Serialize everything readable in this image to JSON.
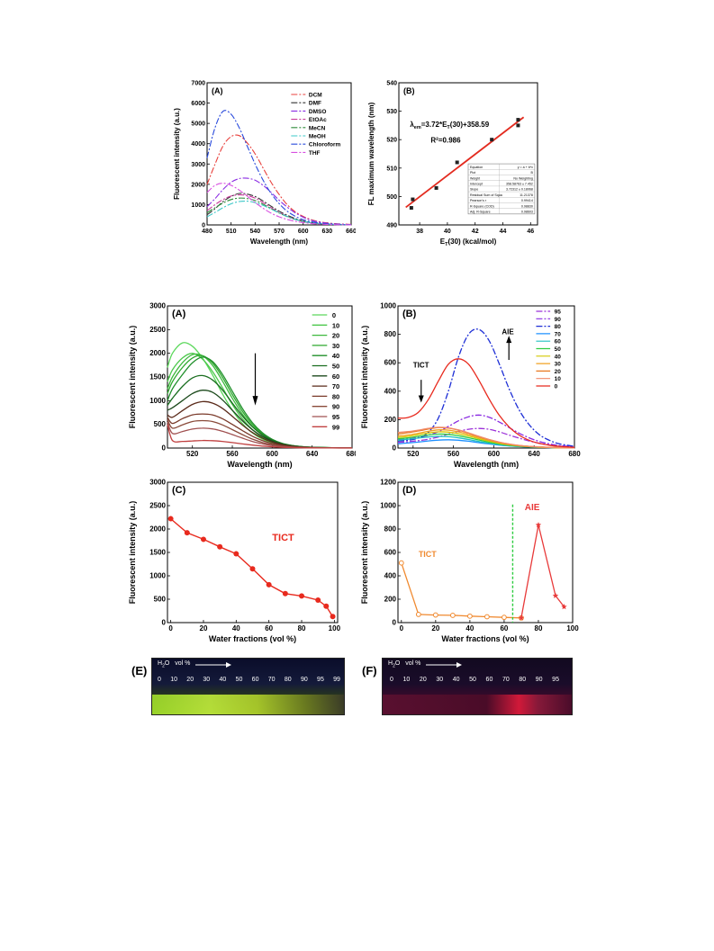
{
  "chart_data": [
    {
      "id": "top-a",
      "type": "line",
      "panel_label": "(A)",
      "xlabel": "Wavelength (nm)",
      "ylabel": "Fluorescent intensity (a.u.)",
      "xlim": [
        480,
        660
      ],
      "ylim": [
        0,
        7000
      ],
      "xticks": [
        480,
        510,
        540,
        570,
        600,
        630,
        660
      ],
      "yticks": [
        0,
        1000,
        2000,
        3000,
        4000,
        5000,
        6000,
        7000
      ],
      "x": [
        480,
        490,
        500,
        510,
        520,
        530,
        540,
        550,
        560,
        570,
        580,
        590,
        600,
        610,
        620,
        630,
        640,
        650,
        660
      ],
      "series": [
        {
          "name": "DCM",
          "color": "#e8403c",
          "dash": "7,2,2,2",
          "values": [
            2000,
            3000,
            3900,
            4350,
            4400,
            4050,
            3500,
            2800,
            2100,
            1500,
            1000,
            650,
            420,
            260,
            160,
            100,
            60,
            40,
            25
          ]
        },
        {
          "name": "DMF",
          "color": "#333333",
          "dash": "7,2,2,2",
          "values": [
            500,
            800,
            1150,
            1400,
            1550,
            1520,
            1400,
            1180,
            920,
            680,
            480,
            320,
            200,
            120,
            75,
            45,
            28,
            18,
            10
          ]
        },
        {
          "name": "DMSO",
          "color": "#8a2be2",
          "dash": "7,2,2,2",
          "values": [
            900,
            1300,
            1750,
            2100,
            2280,
            2300,
            2200,
            1950,
            1600,
            1220,
            880,
            600,
            380,
            230,
            140,
            85,
            50,
            30,
            18
          ]
        },
        {
          "name": "EtOAc",
          "color": "#c8399a",
          "dash": "7,2,2,2",
          "values": [
            700,
            1000,
            1250,
            1420,
            1480,
            1450,
            1320,
            1100,
            850,
            620,
            430,
            280,
            170,
            100,
            60,
            35,
            20,
            12,
            8
          ]
        },
        {
          "name": "MeCN",
          "color": "#2e8b3a",
          "dash": "7,2,2,2",
          "values": [
            600,
            850,
            1080,
            1250,
            1320,
            1300,
            1200,
            1020,
            800,
            590,
            410,
            270,
            170,
            100,
            60,
            35,
            20,
            12,
            8
          ]
        },
        {
          "name": "MeOH",
          "color": "#3cc8c8",
          "dash": "7,2,2,2",
          "values": [
            400,
            620,
            850,
            1040,
            1150,
            1170,
            1100,
            960,
            780,
            590,
            420,
            280,
            180,
            110,
            65,
            40,
            24,
            14,
            8
          ]
        },
        {
          "name": "Chloroform",
          "color": "#2a4bdc",
          "dash": "7,2,2,2",
          "values": [
            3300,
            4800,
            5600,
            5450,
            4800,
            3900,
            3000,
            2200,
            1550,
            1050,
            680,
            430,
            260,
            160,
            95,
            55,
            32,
            20,
            12
          ]
        },
        {
          "name": "THF",
          "color": "#d84fe0",
          "dash": "7,2,2,2",
          "values": [
            1600,
            1950,
            2050,
            1950,
            1720,
            1420,
            1100,
            820,
            580,
            400,
            270,
            180,
            115,
            70,
            42,
            25,
            15,
            9,
            5
          ]
        }
      ]
    },
    {
      "id": "top-b",
      "type": "scatter",
      "panel_label": "(B)",
      "xlabel": "E",
      "xlabel_sub": "T",
      "xlabel_tail": "(30) (kcal/mol)",
      "ylabel": "FL maximum wavelength (nm)",
      "xlim": [
        36.5,
        46.5
      ],
      "ylim": [
        490,
        540
      ],
      "xticks": [
        38,
        40,
        42,
        44,
        46
      ],
      "yticks": [
        490,
        500,
        510,
        520,
        530,
        540
      ],
      "x": [
        37.4,
        37.5,
        39.2,
        40.7,
        43.2,
        45.1,
        45.1
      ],
      "values": [
        496,
        499,
        503,
        512,
        520,
        525,
        527
      ],
      "fit": {
        "color": "#e32b1f",
        "x": [
          37.0,
          45.5
        ],
        "y": [
          496.2,
          527.9
        ]
      },
      "equation_parts": [
        "λ",
        "em",
        "=3.72*E",
        "T",
        "(30)+358.59"
      ],
      "r2": "R²=0.986",
      "fit_table": [
        [
          "Equation",
          "y = a + b*x"
        ],
        [
          "Plot",
          "B"
        ],
        [
          "Weight",
          "No Weighting"
        ],
        [
          "Intercept",
          "358.58763 ± 7.452"
        ],
        [
          "Slope",
          "3.72312 ± 0.18068"
        ],
        [
          "Residual Sum of Squa",
          "11.21378"
        ],
        [
          "Pearson's r",
          "0.99414"
        ],
        [
          "R-Square (COD)",
          "0.98830"
        ],
        [
          "Adj. R-Square",
          "0.98603"
        ]
      ]
    },
    {
      "id": "mid-a",
      "type": "line",
      "panel_label": "(A)",
      "xlabel": "Wavelength (nm)",
      "ylabel": "Fluorescent intensity (a.u.)",
      "xlim": [
        495,
        680
      ],
      "ylim": [
        0,
        3000
      ],
      "xticks": [
        520,
        560,
        600,
        640,
        680
      ],
      "yticks": [
        0,
        500,
        1000,
        1500,
        2000,
        2500,
        3000
      ],
      "x": [
        495,
        500,
        510,
        520,
        530,
        540,
        550,
        560,
        570,
        580,
        590,
        600,
        610,
        620,
        630,
        640,
        660,
        680
      ],
      "series": [
        {
          "name": "0",
          "color": "#5cd85c",
          "values": [
            1700,
            2000,
            2220,
            2150,
            1900,
            1550,
            1150,
            800,
            520,
            320,
            190,
            110,
            60,
            35,
            20,
            12,
            5,
            2
          ]
        },
        {
          "name": "10",
          "color": "#4cc84c",
          "values": [
            1400,
            1650,
            1900,
            2000,
            1880,
            1620,
            1280,
            920,
            620,
            390,
            230,
            130,
            75,
            42,
            24,
            14,
            5,
            2
          ]
        },
        {
          "name": "20",
          "color": "#3db83d",
          "values": [
            1250,
            1500,
            1800,
            1970,
            1950,
            1750,
            1420,
            1050,
            720,
            460,
            280,
            160,
            90,
            50,
            28,
            16,
            6,
            2
          ]
        },
        {
          "name": "30",
          "color": "#2ea82e",
          "values": [
            1150,
            1400,
            1700,
            1900,
            1950,
            1800,
            1500,
            1130,
            780,
            500,
            300,
            170,
            95,
            52,
            29,
            16,
            6,
            2
          ]
        },
        {
          "name": "40",
          "color": "#1f8f2a",
          "values": [
            1000,
            1250,
            1550,
            1800,
            1920,
            1830,
            1560,
            1200,
            840,
            540,
            325,
            185,
            100,
            55,
            30,
            17,
            6,
            2
          ]
        },
        {
          "name": "50",
          "color": "#1a6e20",
          "values": [
            900,
            1050,
            1300,
            1480,
            1530,
            1440,
            1230,
            950,
            680,
            450,
            280,
            165,
            92,
            50,
            27,
            15,
            5,
            2
          ]
        },
        {
          "name": "60",
          "color": "#1c4a1c",
          "values": [
            800,
            850,
            1000,
            1150,
            1220,
            1180,
            1020,
            800,
            580,
            390,
            245,
            145,
            82,
            45,
            24,
            13,
            5,
            2
          ]
        },
        {
          "name": "70",
          "color": "#5a2a1a",
          "values": [
            700,
            650,
            790,
            920,
            980,
            950,
            840,
            670,
            490,
            330,
            210,
            125,
            70,
            38,
            20,
            11,
            4,
            1
          ]
        },
        {
          "name": "80",
          "color": "#7a3a2a",
          "values": [
            650,
            520,
            620,
            700,
            720,
            700,
            620,
            500,
            370,
            250,
            160,
            95,
            53,
            29,
            15,
            8,
            3,
            1
          ]
        },
        {
          "name": "90",
          "color": "#8a4a3a",
          "values": [
            600,
            420,
            490,
            560,
            580,
            560,
            490,
            390,
            285,
            190,
            120,
            70,
            40,
            22,
            12,
            6,
            2,
            1
          ]
        },
        {
          "name": "95",
          "color": "#a05050",
          "values": [
            550,
            310,
            350,
            400,
            420,
            405,
            355,
            285,
            210,
            140,
            90,
            53,
            30,
            16,
            9,
            5,
            2,
            1
          ]
        },
        {
          "name": "99",
          "color": "#c04040",
          "values": [
            500,
            160,
            140,
            150,
            160,
            155,
            140,
            115,
            88,
            62,
            42,
            27,
            16,
            9,
            5,
            3,
            1,
            0
          ]
        }
      ]
    },
    {
      "id": "mid-b",
      "type": "line",
      "panel_label": "(B)",
      "xlabel": "Wavelength (nm)",
      "ylabel": "Fluorescent intensity (a.u.)",
      "xlim": [
        505,
        680
      ],
      "ylim": [
        0,
        1000
      ],
      "xticks": [
        520,
        560,
        600,
        640,
        680
      ],
      "yticks": [
        0,
        200,
        400,
        600,
        800,
        1000
      ],
      "x": [
        505,
        515,
        525,
        535,
        545,
        555,
        565,
        575,
        585,
        595,
        605,
        615,
        625,
        635,
        645,
        655,
        665,
        680
      ],
      "series": [
        {
          "name": "95",
          "color": "#9b30d8",
          "dash": "7,2,2,2",
          "values": [
            40,
            45,
            52,
            62,
            78,
            98,
            118,
            132,
            138,
            132,
            115,
            92,
            70,
            50,
            34,
            22,
            14,
            6
          ]
        },
        {
          "name": "90",
          "color": "#8a2be2",
          "dash": "7,2,2,2",
          "values": [
            60,
            66,
            75,
            90,
            115,
            152,
            192,
            220,
            232,
            218,
            185,
            145,
            105,
            72,
            47,
            30,
            18,
            8
          ]
        },
        {
          "name": "80",
          "color": "#1e2fd6",
          "dash": "7,2,2,2",
          "values": [
            50,
            55,
            70,
            110,
            210,
            400,
            640,
            800,
            835,
            760,
            600,
            420,
            270,
            165,
            95,
            55,
            30,
            12
          ]
        },
        {
          "name": "70",
          "color": "#1e90ff",
          "values": [
            30,
            36,
            42,
            50,
            56,
            58,
            55,
            48,
            38,
            29,
            21,
            15,
            10,
            7,
            5,
            3,
            2,
            1
          ]
        },
        {
          "name": "60",
          "color": "#20c0c0",
          "values": [
            55,
            62,
            70,
            78,
            82,
            80,
            72,
            60,
            46,
            34,
            24,
            16,
            11,
            7,
            5,
            3,
            2,
            1
          ]
        },
        {
          "name": "50",
          "color": "#2ecc40",
          "values": [
            65,
            72,
            82,
            92,
            98,
            96,
            87,
            73,
            57,
            42,
            30,
            20,
            13,
            9,
            6,
            4,
            2,
            1
          ]
        },
        {
          "name": "40",
          "color": "#d4c800",
          "values": [
            75,
            82,
            94,
            106,
            114,
            112,
            101,
            85,
            66,
            49,
            34,
            23,
            15,
            10,
            6,
            4,
            2,
            1
          ]
        },
        {
          "name": "30",
          "color": "#f0a020",
          "values": [
            85,
            92,
            104,
            118,
            128,
            126,
            114,
            95,
            74,
            55,
            38,
            26,
            17,
            11,
            7,
            4,
            2,
            1
          ]
        },
        {
          "name": "20",
          "color": "#e87820",
          "values": [
            100,
            108,
            120,
            134,
            144,
            140,
            126,
            105,
            82,
            60,
            42,
            28,
            18,
            12,
            8,
            5,
            3,
            1
          ]
        },
        {
          "name": "10",
          "color": "#f08a6a",
          "values": [
            110,
            116,
            126,
            138,
            146,
            142,
            128,
            107,
            83,
            61,
            43,
            29,
            19,
            12,
            8,
            5,
            3,
            1
          ]
        },
        {
          "name": "0",
          "color": "#e82a1e",
          "values": [
            210,
            215,
            250,
            340,
            470,
            590,
            628,
            590,
            480,
            350,
            235,
            150,
            92,
            55,
            33,
            20,
            12,
            5
          ]
        }
      ],
      "annotations": [
        "AIE",
        "TICT"
      ]
    },
    {
      "id": "mid-c",
      "type": "line",
      "panel_label": "(C)",
      "xlabel": "Water fractions (vol %)",
      "ylabel": "Fluorescent intensity (a.u.)",
      "xlim": [
        -2,
        102
      ],
      "ylim": [
        0,
        3000
      ],
      "xticks": [
        0,
        20,
        40,
        60,
        80,
        100
      ],
      "yticks": [
        0,
        500,
        1000,
        1500,
        2000,
        2500,
        3000
      ],
      "x": [
        0,
        10,
        20,
        30,
        40,
        50,
        60,
        70,
        80,
        90,
        95,
        99
      ],
      "values": [
        2220,
        1920,
        1780,
        1620,
        1470,
        1150,
        810,
        620,
        570,
        480,
        350,
        130
      ],
      "color": "#e82a1e",
      "annotation": "TICT"
    },
    {
      "id": "mid-d",
      "type": "line",
      "panel_label": "(D)",
      "xlabel": "Water fractions (vol %)",
      "ylabel": "Fluorescent intensity (a.u.)",
      "xlim": [
        -2,
        100
      ],
      "ylim": [
        0,
        1200
      ],
      "xticks": [
        0,
        20,
        40,
        60,
        80,
        100
      ],
      "yticks": [
        0,
        200,
        400,
        600,
        800,
        1000,
        1200
      ],
      "tict_x": [
        0,
        10,
        20,
        30,
        40,
        50,
        60,
        70
      ],
      "tict_values": [
        510,
        70,
        65,
        62,
        55,
        50,
        45,
        40
      ],
      "aie_x": [
        70,
        80,
        90,
        95
      ],
      "aie_values": [
        40,
        835,
        230,
        135
      ],
      "tict_color": "#f08a30",
      "aie_color": "#e83a3a",
      "divider_x": 65,
      "annotations": [
        "TICT",
        "AIE"
      ]
    }
  ],
  "photos": {
    "e": {
      "panel_label": "(E)",
      "arrow_text": "vol %",
      "h2o": "H",
      "h2o_sub": "2",
      "h2o_tail": "O",
      "labels": [
        "0",
        "10",
        "20",
        "30",
        "40",
        "50",
        "60",
        "70",
        "80",
        "90",
        "95",
        "99"
      ]
    },
    "f": {
      "panel_label": "(F)",
      "arrow_text": "vol %",
      "h2o": "H",
      "h2o_sub": "2",
      "h2o_tail": "O",
      "labels": [
        "0",
        "10",
        "20",
        "30",
        "40",
        "50",
        "60",
        "70",
        "80",
        "90",
        "95"
      ]
    }
  }
}
